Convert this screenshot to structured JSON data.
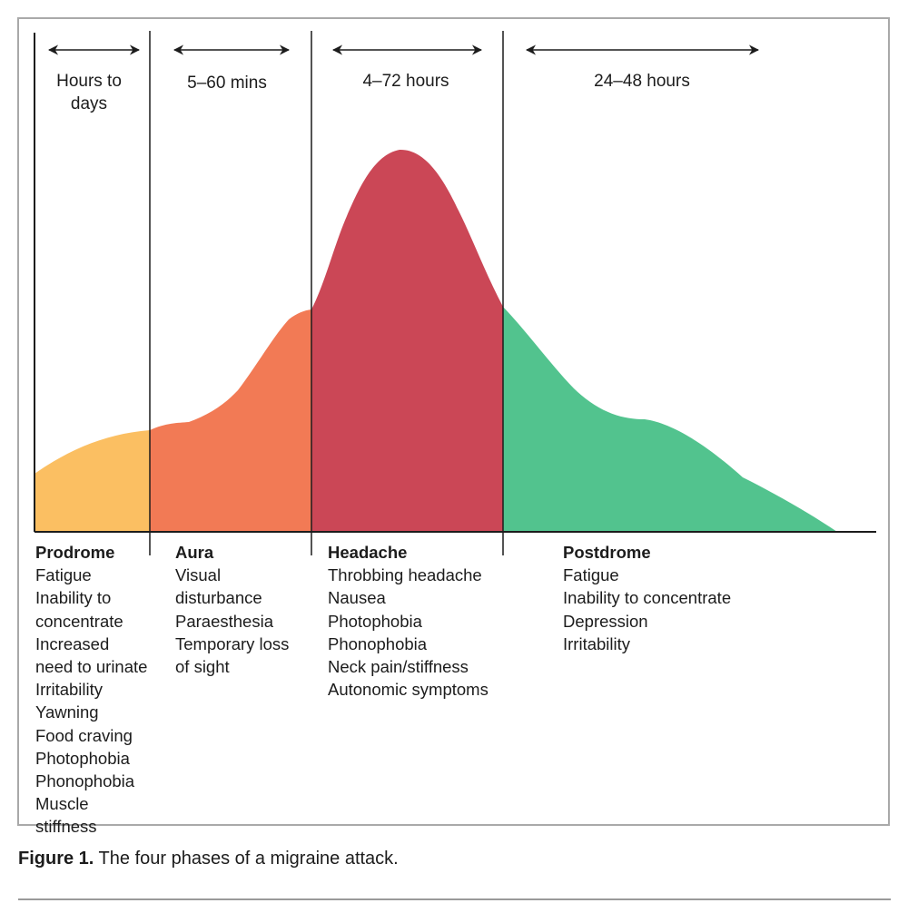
{
  "figure": {
    "durations": [
      {
        "text": "Hours to\ndays"
      },
      {
        "text": "5–60 mins"
      },
      {
        "text": "4–72 hours"
      },
      {
        "text": "24–48 hours"
      }
    ],
    "phases": [
      {
        "title": "Prodrome",
        "color": "#fbbf62",
        "symptoms": [
          "Fatigue",
          "Inability to\nconcentrate",
          "Increased\nneed to urinate",
          "Irritability",
          "Yawning",
          "Food craving",
          "Photophobia",
          "Phonophobia",
          "Muscle stiffness"
        ]
      },
      {
        "title": "Aura",
        "color": "#f27a55",
        "symptoms": [
          "Visual\ndisturbance",
          "Paraesthesia",
          "Temporary loss\nof sight"
        ]
      },
      {
        "title": "Headache",
        "color": "#cb4756",
        "symptoms": [
          "Throbbing headache",
          "Nausea",
          "Photophobia",
          "Phonophobia",
          "Neck pain/stiffness",
          "Autonomic symptoms"
        ]
      },
      {
        "title": "Postdrome",
        "color": "#52c38e",
        "symptoms": [
          "Fatigue",
          "Inability to concentrate",
          "Depression",
          "Irritability"
        ]
      }
    ]
  },
  "caption": {
    "label": "Figure 1.",
    "text": " The four phases of a migraine attack."
  }
}
